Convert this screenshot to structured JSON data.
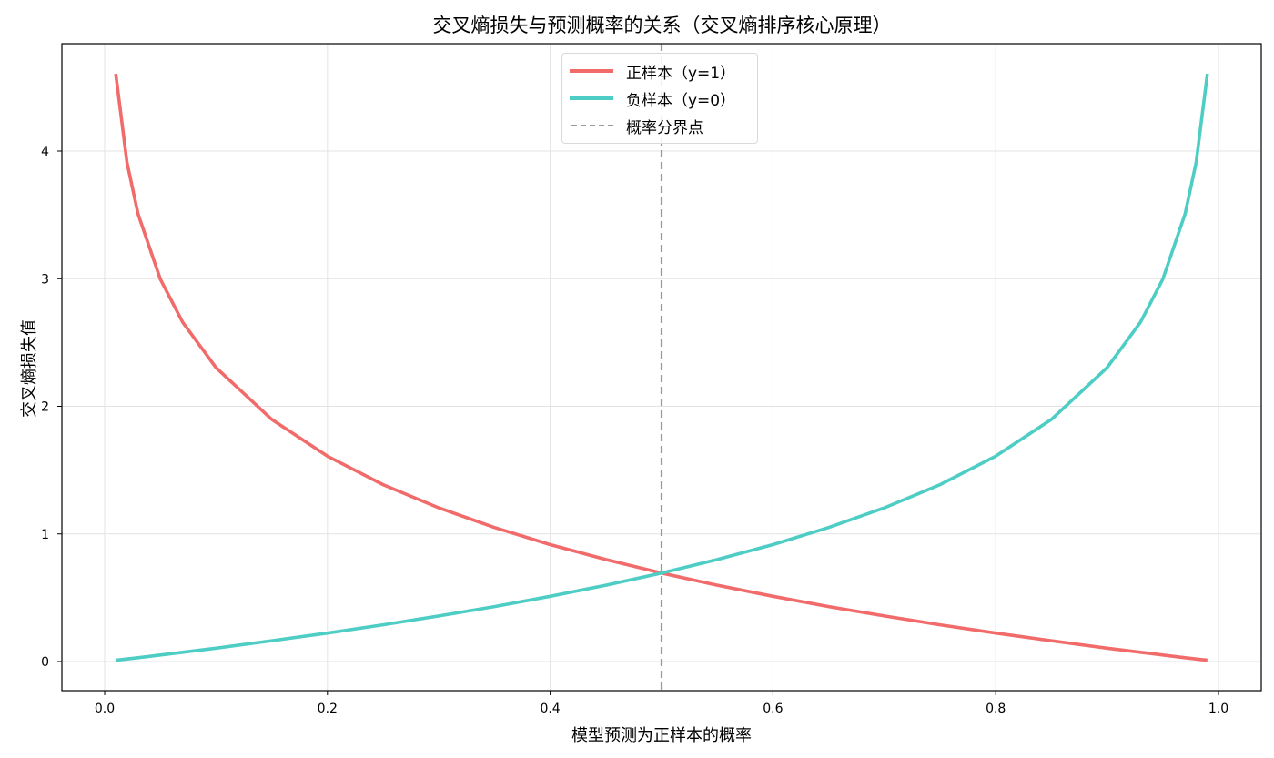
{
  "chart_data": {
    "type": "line",
    "title": "交叉熵损失与预测概率的关系（交叉熵排序核心原理）",
    "xlabel": "模型预测为正样本的概率",
    "ylabel": "交叉熵损失值",
    "xlim": [
      -0.04,
      1.04
    ],
    "ylim": [
      -0.23,
      4.84
    ],
    "xticks": [
      0.0,
      0.2,
      0.4,
      0.6,
      0.8,
      1.0
    ],
    "xtick_labels": [
      "0.0",
      "0.2",
      "0.4",
      "0.6",
      "0.8",
      "1.0"
    ],
    "yticks": [
      0,
      1,
      2,
      3,
      4
    ],
    "ytick_labels": [
      "0",
      "1",
      "2",
      "3",
      "4"
    ],
    "grid": true,
    "legend_position": "upper center",
    "x": [
      0.01,
      0.02,
      0.03,
      0.05,
      0.07,
      0.1,
      0.15,
      0.2,
      0.25,
      0.3,
      0.35,
      0.4,
      0.45,
      0.5,
      0.55,
      0.6,
      0.65,
      0.7,
      0.75,
      0.8,
      0.85,
      0.9,
      0.93,
      0.95,
      0.97,
      0.98,
      0.99
    ],
    "series": [
      {
        "name": "正样本（y=1）",
        "color": "#f26b6b",
        "style": "solid",
        "values": [
          4.605,
          3.912,
          3.507,
          2.996,
          2.659,
          2.303,
          1.897,
          1.609,
          1.386,
          1.204,
          1.05,
          0.916,
          0.799,
          0.693,
          0.598,
          0.511,
          0.431,
          0.357,
          0.288,
          0.223,
          0.163,
          0.105,
          0.073,
          0.051,
          0.03,
          0.02,
          0.01
        ]
      },
      {
        "name": "负样本（y=0）",
        "color": "#4ecdc4",
        "style": "solid",
        "values": [
          0.01,
          0.02,
          0.03,
          0.051,
          0.073,
          0.105,
          0.163,
          0.223,
          0.288,
          0.357,
          0.431,
          0.511,
          0.598,
          0.693,
          0.799,
          0.916,
          1.05,
          1.204,
          1.386,
          1.609,
          1.897,
          2.303,
          2.659,
          2.996,
          3.507,
          3.912,
          4.605
        ]
      }
    ],
    "annotations": [
      {
        "type": "vline",
        "x": 0.5,
        "label": "概率分界点",
        "color": "#999999",
        "style": "dashed"
      }
    ],
    "legend": [
      {
        "label": "正样本（y=1）",
        "color": "#f26b6b",
        "style": "solid"
      },
      {
        "label": "负样本（y=0）",
        "color": "#4ecdc4",
        "style": "solid"
      },
      {
        "label": "概率分界点",
        "color": "#999999",
        "style": "dashed"
      }
    ]
  }
}
